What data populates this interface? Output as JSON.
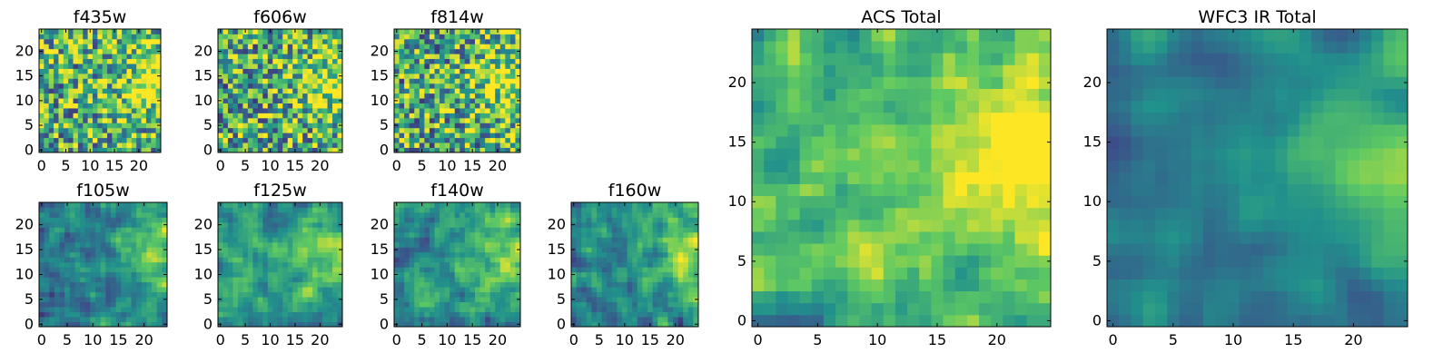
{
  "figure": {
    "description_free": true
  },
  "colormap": {
    "name": "viridis",
    "stops": [
      "#440154",
      "#3b528b",
      "#21918c",
      "#5ec962",
      "#fde725"
    ]
  },
  "chart_data": [
    {
      "id": "f435w",
      "type": "heatmap",
      "title": "f435w",
      "grid": [
        25,
        25
      ],
      "xlim": [
        -0.5,
        24.5
      ],
      "ylim": [
        -0.5,
        24.5
      ],
      "xticks": [
        "0",
        "5",
        "10",
        "15",
        "20"
      ],
      "yticks": [
        "0",
        "5",
        "10",
        "15",
        "20"
      ],
      "value_range": [
        0,
        1
      ],
      "mean": 0.62,
      "spread": 0.55,
      "seed": 11
    },
    {
      "id": "f606w",
      "type": "heatmap",
      "title": "f606w",
      "grid": [
        25,
        25
      ],
      "xlim": [
        -0.5,
        24.5
      ],
      "ylim": [
        -0.5,
        24.5
      ],
      "xticks": [
        "0",
        "5",
        "10",
        "15",
        "20"
      ],
      "yticks": [
        "0",
        "5",
        "10",
        "15",
        "20"
      ],
      "value_range": [
        0,
        1
      ],
      "mean": 0.6,
      "spread": 0.55,
      "seed": 23
    },
    {
      "id": "f814w",
      "type": "heatmap",
      "title": "f814w",
      "grid": [
        25,
        25
      ],
      "xlim": [
        -0.5,
        24.5
      ],
      "ylim": [
        -0.5,
        24.5
      ],
      "xticks": [
        "0",
        "5",
        "10",
        "15",
        "20"
      ],
      "yticks": [
        "0",
        "5",
        "10",
        "15",
        "20"
      ],
      "value_range": [
        0,
        1
      ],
      "mean": 0.6,
      "spread": 0.55,
      "seed": 37
    },
    {
      "id": "f105w",
      "type": "heatmap",
      "title": "f105w",
      "grid": [
        25,
        25
      ],
      "xlim": [
        -0.5,
        24.5
      ],
      "ylim": [
        -0.5,
        24.5
      ],
      "xticks": [
        "0",
        "5",
        "10",
        "15",
        "20"
      ],
      "yticks": [
        "0",
        "5",
        "10",
        "15",
        "20"
      ],
      "value_range": [
        0,
        1
      ],
      "mean": 0.45,
      "spread": 0.35,
      "seed": 41
    },
    {
      "id": "f125w",
      "type": "heatmap",
      "title": "f125w",
      "grid": [
        25,
        25
      ],
      "xlim": [
        -0.5,
        24.5
      ],
      "ylim": [
        -0.5,
        24.5
      ],
      "xticks": [
        "0",
        "5",
        "10",
        "15",
        "20"
      ],
      "yticks": [
        "0",
        "5",
        "10",
        "15",
        "20"
      ],
      "value_range": [
        0,
        1
      ],
      "mean": 0.5,
      "spread": 0.35,
      "seed": 53
    },
    {
      "id": "f140w",
      "type": "heatmap",
      "title": "f140w",
      "grid": [
        25,
        25
      ],
      "xlim": [
        -0.5,
        24.5
      ],
      "ylim": [
        -0.5,
        24.5
      ],
      "xticks": [
        "0",
        "5",
        "10",
        "15",
        "20"
      ],
      "yticks": [
        "0",
        "5",
        "10",
        "15",
        "20"
      ],
      "value_range": [
        0,
        1
      ],
      "mean": 0.48,
      "spread": 0.35,
      "seed": 67
    },
    {
      "id": "f160w",
      "type": "heatmap",
      "title": "f160w",
      "grid": [
        25,
        25
      ],
      "xlim": [
        -0.5,
        24.5
      ],
      "ylim": [
        -0.5,
        24.5
      ],
      "xticks": [
        "0",
        "5",
        "10",
        "15",
        "20"
      ],
      "yticks": [
        "0",
        "5",
        "10",
        "15",
        "20"
      ],
      "value_range": [
        0,
        1
      ],
      "mean": 0.45,
      "spread": 0.38,
      "seed": 79
    },
    {
      "id": "acs-total",
      "type": "heatmap",
      "title": "ACS Total",
      "grid": [
        25,
        25
      ],
      "xlim": [
        -0.5,
        24.5
      ],
      "ylim": [
        -0.5,
        24.5
      ],
      "xticks": [
        "0",
        "5",
        "10",
        "15",
        "20"
      ],
      "yticks": [
        "0",
        "5",
        "10",
        "15",
        "20"
      ],
      "value_range": [
        0,
        1
      ],
      "mean": 0.62,
      "spread": 0.4,
      "seed": 97
    },
    {
      "id": "wfc3-ir-total",
      "type": "heatmap",
      "title": "WFC3 IR Total",
      "grid": [
        25,
        25
      ],
      "xlim": [
        -0.5,
        24.5
      ],
      "ylim": [
        -0.5,
        24.5
      ],
      "xticks": [
        "0",
        "5",
        "10",
        "15",
        "20"
      ],
      "yticks": [
        "0",
        "5",
        "10",
        "15",
        "20"
      ],
      "value_range": [
        0,
        1
      ],
      "mean": 0.42,
      "spread": 0.25,
      "seed": 113
    }
  ]
}
